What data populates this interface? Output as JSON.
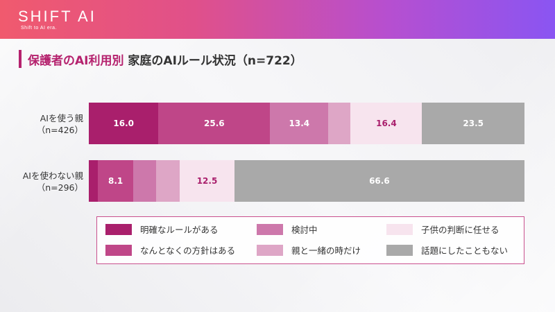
{
  "brand": {
    "logo_text": "SHIFT AI",
    "logo_subtitle": "Shift to AI era."
  },
  "title": {
    "accent": "保護者のAI利用別",
    "rest": "家庭のAIルール状況（n=722）"
  },
  "colors": {
    "明確なルールがある": "#a91f6c",
    "なんとなくの方針はある": "#bf4688",
    "検討中": "#cd78ab",
    "親と一緒の時だけ": "#dea6c6",
    "子供の判断に任せる": "#f7e4ee",
    "話題にしたこともない": "#a9a9a9"
  },
  "chart_data": {
    "type": "bar",
    "orientation": "horizontal",
    "stacked": true,
    "normalized": true,
    "title": "保護者のAI利用別 家庭のAIルール状況（n=722）",
    "categories": [
      {
        "label": "AIを使う親",
        "n": "（n=426）"
      },
      {
        "label": "AIを使わない親",
        "n": "（n=296）"
      }
    ],
    "series": [
      {
        "name": "明確なルールがある",
        "values": [
          16.0,
          2.1
        ],
        "labels": [
          "16.0",
          ""
        ],
        "text_color": "#ffffff"
      },
      {
        "name": "なんとなくの方針はある",
        "values": [
          25.6,
          8.1
        ],
        "labels": [
          "25.6",
          "8.1"
        ],
        "text_color": "#ffffff"
      },
      {
        "name": "検討中",
        "values": [
          13.4,
          5.3
        ],
        "labels": [
          "13.4",
          ""
        ],
        "text_color": "#ffffff"
      },
      {
        "name": "親と一緒の時だけ",
        "values": [
          5.1,
          5.4
        ],
        "labels": [
          "",
          ""
        ],
        "text_color": "#ffffff"
      },
      {
        "name": "子供の判断に任せる",
        "values": [
          16.4,
          12.5
        ],
        "labels": [
          "16.4",
          "12.5"
        ],
        "text_color": "#a91f6c"
      },
      {
        "name": "話題にしたこともない",
        "values": [
          23.5,
          66.6
        ],
        "labels": [
          "23.5",
          "66.6"
        ],
        "text_color": "#ffffff"
      }
    ],
    "xlim": [
      0,
      100
    ],
    "legend": {
      "position": "bottom",
      "order": [
        "明確なルールがある",
        "検討中",
        "子供の判断に任せる",
        "なんとなくの方針はある",
        "親と一緒の時だけ",
        "話題にしたこともない"
      ]
    }
  }
}
